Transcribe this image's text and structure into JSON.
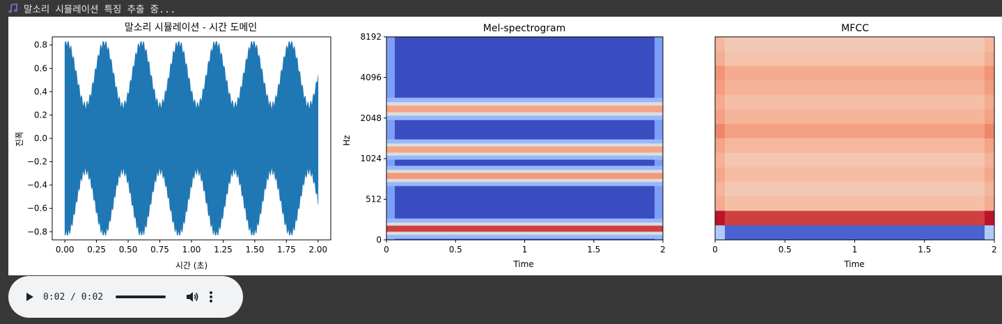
{
  "status": {
    "icon": "music-note-icon",
    "icon_color": "#7b6bbf",
    "text": "말소리 시뮬레이션 특징 추출 중..."
  },
  "figure": {
    "waveform": {
      "title": "말소리 시뮬레이션 - 시간 도메인",
      "xlabel": "시간 (초)",
      "ylabel": "진폭",
      "xlim": [
        -0.1,
        2.1
      ],
      "ylim": [
        -0.87,
        0.87
      ],
      "xticks": [
        0.0,
        0.25,
        0.5,
        0.75,
        1.0,
        1.25,
        1.5,
        1.75,
        2.0
      ],
      "xtick_labels": [
        "0.00",
        "0.25",
        "0.50",
        "0.75",
        "1.00",
        "1.25",
        "1.50",
        "1.75",
        "2.00"
      ],
      "yticks": [
        0.8,
        0.6,
        0.4,
        0.2,
        0.0,
        -0.2,
        -0.4,
        -0.6,
        -0.8
      ],
      "ytick_labels": [
        "0.8",
        "0.6",
        "0.4",
        "0.2",
        "0.0",
        "−0.2",
        "−0.4",
        "−0.6",
        "−0.8"
      ],
      "color": "#1f77b4"
    },
    "mel": {
      "title": "Mel-spectrogram",
      "xlabel": "Time",
      "ylabel": "Hz",
      "xlim": [
        0,
        2
      ],
      "xticks": [
        0,
        0.5,
        1,
        1.5,
        2
      ],
      "xtick_labels": [
        "0",
        "0.5",
        "1",
        "1.5",
        "2"
      ],
      "ytick_labels": [
        "8192",
        "4096",
        "2048",
        "1024",
        "512",
        "0"
      ],
      "colormap": "coolwarm"
    },
    "mfcc": {
      "title": "MFCC",
      "xlabel": "Time",
      "xlim": [
        0,
        2
      ],
      "xticks": [
        0,
        0.5,
        1,
        1.5,
        2
      ],
      "xtick_labels": [
        "0",
        "0.5",
        "1",
        "1.5",
        "2"
      ],
      "colormap": "coolwarm"
    }
  },
  "player": {
    "time": "0:02 / 0:02",
    "progress": 1.0,
    "play_icon": "play-icon",
    "volume_icon": "volume-icon",
    "menu_icon": "more-vert-icon"
  }
}
